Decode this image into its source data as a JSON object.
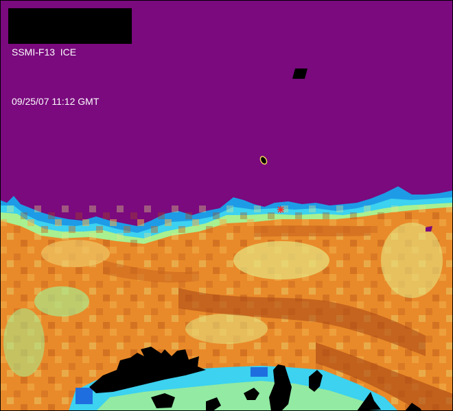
{
  "header": {
    "line1": "SSMI-F13  ICE",
    "line2": "09/25/07 11:12 GMT"
  },
  "colors": {
    "open_water": "#7a0a7e",
    "land": "#000000",
    "ice_edge_blue": "#1e9be6",
    "ice_low_cyan": "#3cd2f0",
    "ice_mid_green": "#a8f090",
    "ice_yellow": "#e6e682",
    "ice_orange": "#e98a2a",
    "ice_dark_orange": "#c8641e",
    "ice_brown": "#a84614",
    "marker": "#ff2a2a",
    "coastline_outline": "#f2d25a"
  },
  "icons": {
    "pole_marker": "asterisk",
    "buoy_marker": "ellipse"
  }
}
